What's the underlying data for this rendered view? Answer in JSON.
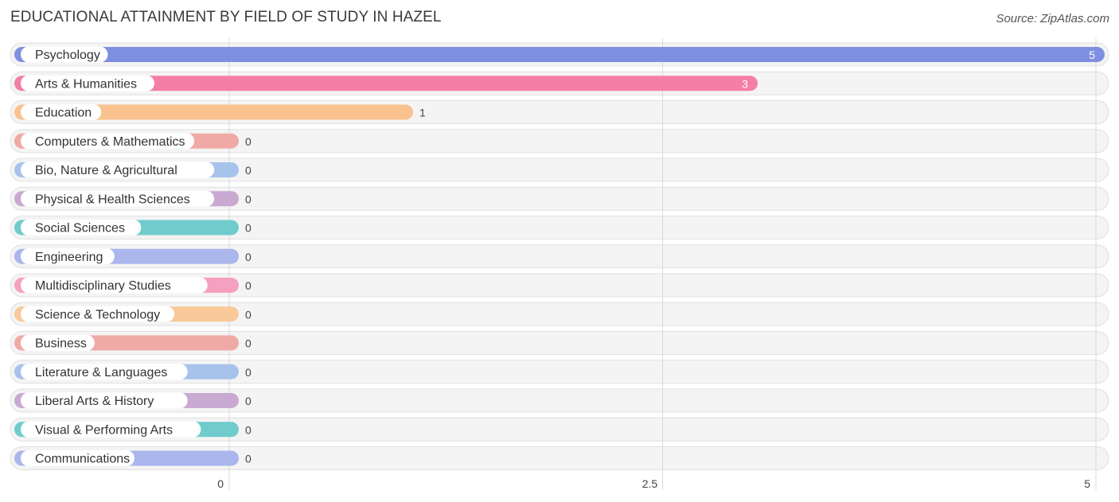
{
  "page": {
    "title": "EDUCATIONAL ATTAINMENT BY FIELD OF STUDY IN HAZEL",
    "source": "Source: ZipAtlas.com"
  },
  "chart_data": {
    "type": "bar",
    "orientation": "horizontal",
    "title": "EDUCATIONAL ATTAINMENT BY FIELD OF STUDY IN HAZEL",
    "xlabel": "",
    "ylabel": "",
    "xlim": [
      0,
      5
    ],
    "ticks": [
      0,
      2.5,
      5
    ],
    "tick_labels": [
      "0",
      "2.5",
      "5"
    ],
    "grid": true,
    "categories": [
      "Psychology",
      "Arts & Humanities",
      "Education",
      "Computers & Mathematics",
      "Bio, Nature & Agricultural",
      "Physical & Health Sciences",
      "Social Sciences",
      "Engineering",
      "Multidisciplinary Studies",
      "Science & Technology",
      "Business",
      "Literature & Languages",
      "Liberal Arts & History",
      "Visual & Performing Arts",
      "Communications"
    ],
    "values": [
      5,
      3,
      1,
      0,
      0,
      0,
      0,
      0,
      0,
      0,
      0,
      0,
      0,
      0,
      0
    ],
    "value_labels": [
      "5",
      "3",
      "1",
      "0",
      "0",
      "0",
      "0",
      "0",
      "0",
      "0",
      "0",
      "0",
      "0",
      "0",
      "0"
    ],
    "colors": [
      "#7f8fdf",
      "#f57ea6",
      "#f9c28e",
      "#f0aaa6",
      "#a7c3ec",
      "#c9a9d2",
      "#6fcbcc",
      "#aab6ec",
      "#f6a0bf",
      "#f9c99a",
      "#f0aaa6",
      "#a7c3ec",
      "#c9a9d2",
      "#6fcbcc",
      "#aab6ec"
    ]
  }
}
